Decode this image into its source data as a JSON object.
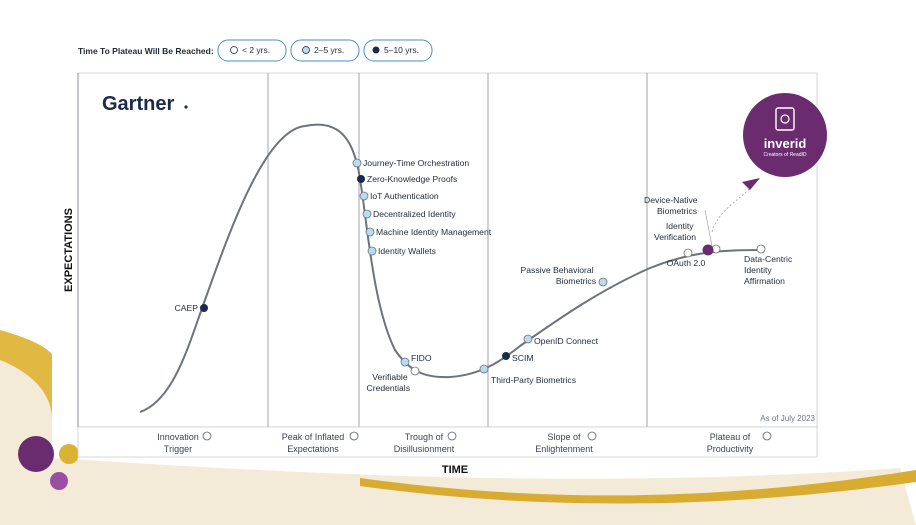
{
  "legend": {
    "title": "Time To Plateau Will Be Reached:",
    "items": [
      {
        "label": "< 2 yrs.",
        "fill": "#ffffff"
      },
      {
        "label": "2–5 yrs.",
        "fill": "#b9dbef"
      },
      {
        "label": "5–10 yrs.",
        "fill": "#1b2a4a"
      }
    ]
  },
  "brand": "Gartner",
  "logo": {
    "name": "inverid",
    "tagline": "Creators of ReadID",
    "color": "#6b2c6f"
  },
  "chart_data": {
    "type": "scatter",
    "xlabel": "TIME",
    "ylabel": "EXPECTATIONS",
    "note": "As of July 2023",
    "phases": [
      {
        "line1": "Innovation",
        "line2": "Trigger"
      },
      {
        "line1": "Peak of Inflated",
        "line2": "Expectations"
      },
      {
        "line1": "Trough of",
        "line2": "Disillusionment"
      },
      {
        "line1": "Slope of",
        "line2": "Enlightenment"
      },
      {
        "line1": "Plateau of",
        "line2": "Productivity"
      }
    ],
    "points": [
      {
        "name": "CAEP",
        "category": "5–10 yrs."
      },
      {
        "name": "Journey-Time Orchestration",
        "category": "2–5 yrs."
      },
      {
        "name": "Zero-Knowledge Proofs",
        "category": "5–10 yrs."
      },
      {
        "name": "IoT Authentication",
        "category": "2–5 yrs."
      },
      {
        "name": "Decentralized Identity",
        "category": "2–5 yrs."
      },
      {
        "name": "Machine Identity Management",
        "category": "2–5 yrs."
      },
      {
        "name": "Identity Wallets",
        "category": "2–5 yrs."
      },
      {
        "name": "FIDO",
        "category": "2–5 yrs."
      },
      {
        "name": "Verifiable Credentials",
        "category": "< 2 yrs."
      },
      {
        "name": "Third-Party Biometrics",
        "category": "2–5 yrs."
      },
      {
        "name": "SCIM",
        "category": "5–10 yrs."
      },
      {
        "name": "OpenID Connect",
        "category": "2–5 yrs."
      },
      {
        "name": "Passive Behavioral Biometrics",
        "category": "2–5 yrs."
      },
      {
        "name": "OAuth 2.0",
        "category": "< 2 yrs."
      },
      {
        "name": "Device-Native Biometrics",
        "category": "< 2 yrs."
      },
      {
        "name": "Identity Verification",
        "category": "highlight"
      },
      {
        "name": "Data-Centric Identity Affirmation",
        "category": "< 2 yrs."
      }
    ]
  }
}
